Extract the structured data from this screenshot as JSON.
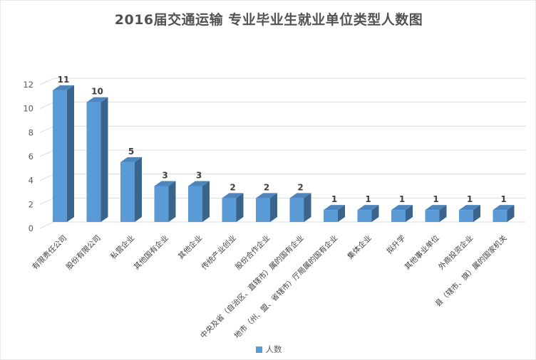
{
  "title": "2016届交通运输 专业毕业生就业单位类型人数图",
  "legend": {
    "label": "人数",
    "swatch_color": "#5B9BD5"
  },
  "colors": {
    "bar_front": "#5B9BD5",
    "bar_side": "#3A648C",
    "bar_top": "#4D86BE",
    "gridline": "#DCDCDC",
    "axis_text": "#595959",
    "category_text": "#3F3F3F",
    "value_label": "#3F3F3F",
    "title_text": "#525252"
  },
  "chart_data": {
    "type": "bar",
    "style": "3d-bar",
    "title": "2016届交通运输 专业毕业生就业单位类型人数图",
    "categories": [
      "有限责任公司",
      "股份有限公司",
      "私营企业",
      "其他国有企业",
      "其他企业",
      "传统产业创业",
      "股份合作企业",
      "中央及省（自治区、直辖市）属的国有企业",
      "地市（州、盟、省辖市）厅局属的国有企业",
      "集体企业",
      "拟升学",
      "其他事业单位",
      "外商投资企业",
      "县（辖市、旗）属的国家机关"
    ],
    "series": [
      {
        "name": "人数",
        "values": [
          11,
          10,
          5,
          3,
          3,
          2,
          2,
          2,
          1,
          1,
          1,
          1,
          1,
          1
        ]
      }
    ],
    "xlabel": "",
    "ylabel": "",
    "ylim": [
      0,
      12
    ],
    "yticks": [
      0,
      2,
      4,
      6,
      8,
      10,
      12
    ],
    "grid": true,
    "data_labels": true,
    "legend_position": "bottom"
  }
}
